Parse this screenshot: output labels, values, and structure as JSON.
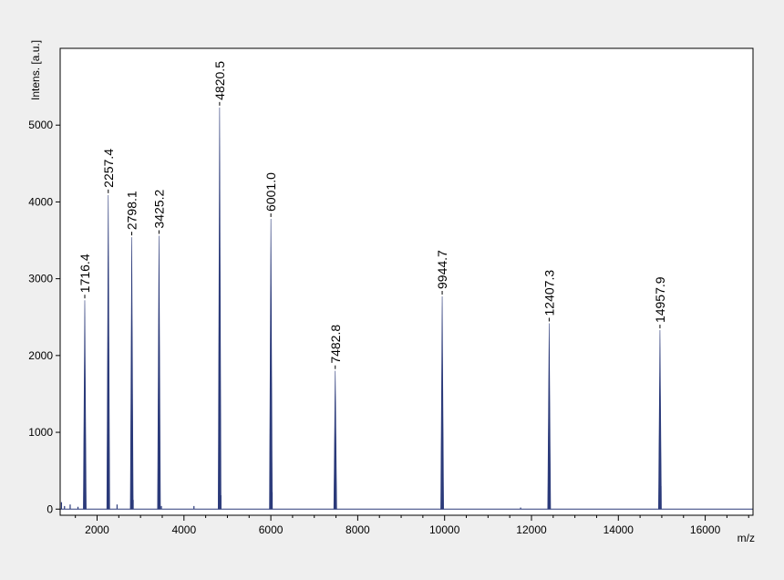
{
  "chart_data": {
    "type": "line",
    "title": "",
    "xlabel": "m/z",
    "ylabel": "Intens. [a.u.]",
    "xlim": [
      1150,
      17100
    ],
    "ylim": [
      -80,
      6000
    ],
    "x_ticks": [
      2000,
      4000,
      6000,
      8000,
      10000,
      12000,
      14000,
      16000
    ],
    "y_ticks": [
      0,
      1000,
      2000,
      3000,
      4000,
      5000
    ],
    "grid": false,
    "legend": "none",
    "line_color": "#2b3a7a",
    "peaks": [
      {
        "x": 1716.4,
        "y": 2720,
        "label": "1716.4"
      },
      {
        "x": 2257.4,
        "y": 4090,
        "label": "2257.4"
      },
      {
        "x": 2798.1,
        "y": 3540,
        "label": "2798.1"
      },
      {
        "x": 3425.2,
        "y": 3560,
        "label": "3425.2"
      },
      {
        "x": 4820.5,
        "y": 5230,
        "label": "4820.5"
      },
      {
        "x": 6001.0,
        "y": 3780,
        "label": "6001.0"
      },
      {
        "x": 7482.8,
        "y": 1800,
        "label": "7482.8"
      },
      {
        "x": 9944.7,
        "y": 2770,
        "label": "9944.7"
      },
      {
        "x": 12407.3,
        "y": 2420,
        "label": "12407.3"
      },
      {
        "x": 14957.9,
        "y": 2330,
        "label": "14957.9"
      }
    ],
    "minor_peaks": [
      {
        "x": 1180,
        "y": 90
      },
      {
        "x": 1250,
        "y": 40
      },
      {
        "x": 1380,
        "y": 60
      },
      {
        "x": 1560,
        "y": 30
      },
      {
        "x": 2260,
        "y": 50
      },
      {
        "x": 2460,
        "y": 60
      },
      {
        "x": 2830,
        "y": 120
      },
      {
        "x": 3480,
        "y": 40
      },
      {
        "x": 4230,
        "y": 40
      },
      {
        "x": 4850,
        "y": 180
      },
      {
        "x": 6030,
        "y": 220
      },
      {
        "x": 7500,
        "y": 30
      },
      {
        "x": 9960,
        "y": 25
      },
      {
        "x": 11750,
        "y": 20
      },
      {
        "x": 12420,
        "y": 60
      },
      {
        "x": 14980,
        "y": 300
      }
    ]
  }
}
